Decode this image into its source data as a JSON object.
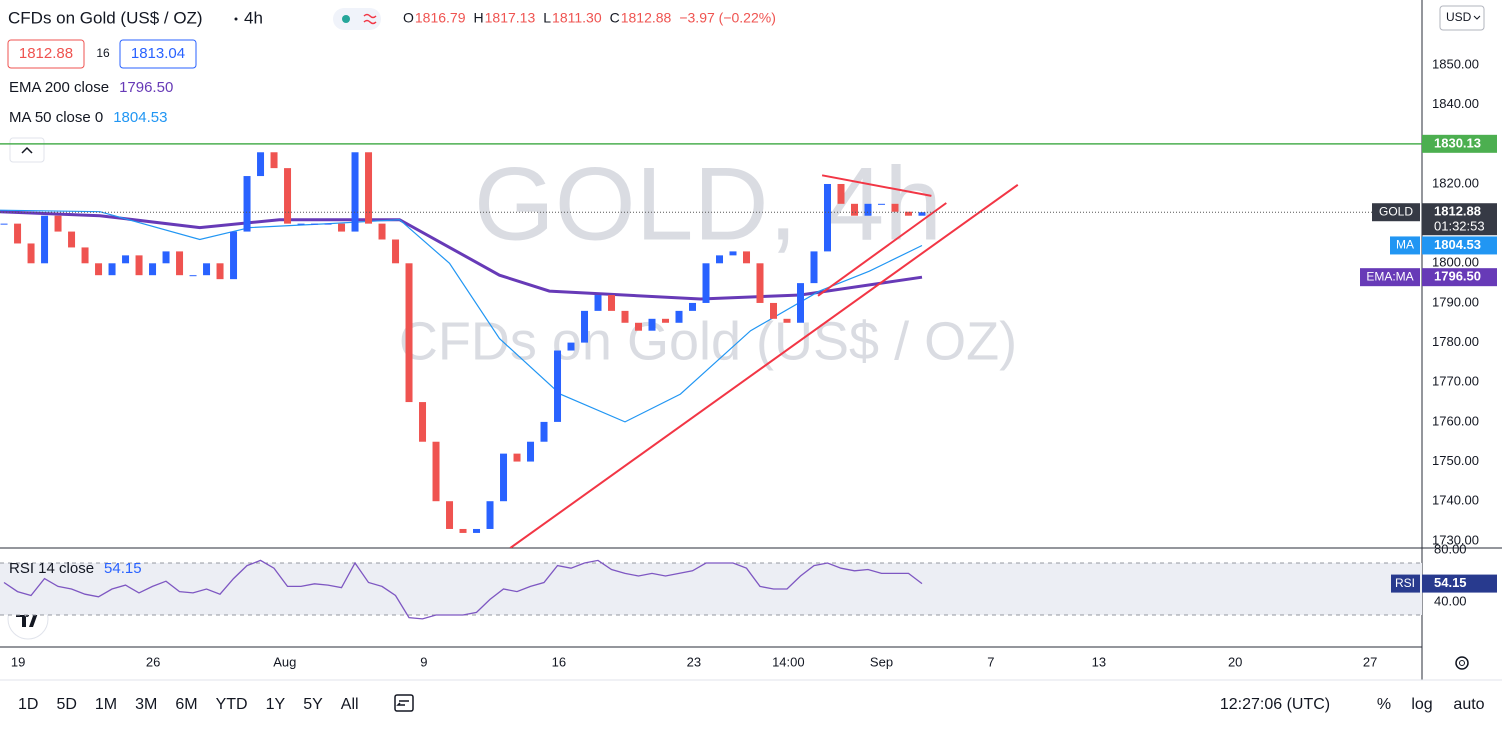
{
  "chart_data": {
    "type": "candlestick",
    "title": "CFDs on Gold (US$ / OZ)",
    "interval": "4h",
    "watermark": "GOLD, 4h",
    "symbol": "GOLD",
    "ohlc": [
      {
        "label": "O",
        "value": "1816.79"
      },
      {
        "label": "H",
        "value": "1817.13"
      },
      {
        "label": "L",
        "value": "1811.30"
      },
      {
        "label": "C",
        "value": "1812.88"
      }
    ],
    "change": "−3.97 (−0.22%)",
    "bid": "1812.88",
    "spread": "16",
    "ask": "1813.04",
    "currency": "USD",
    "countdown": "01:32:53",
    "up_color": "#2962ff",
    "down_color": "#ef5350",
    "x": [
      0,
      1,
      2,
      3,
      4,
      5,
      6,
      7,
      8,
      9,
      10,
      11,
      12,
      13,
      14,
      15,
      16,
      17,
      18,
      19,
      20,
      21,
      22,
      23,
      24,
      25,
      26,
      27,
      28,
      29,
      30,
      31,
      32,
      33,
      34,
      35,
      36,
      37,
      38,
      39,
      40,
      41,
      42,
      43,
      44,
      45,
      46,
      47,
      48,
      49,
      50,
      51,
      52,
      53,
      54,
      55,
      56,
      57,
      58,
      59,
      60,
      61,
      62,
      63,
      64,
      65,
      66,
      67,
      68
    ],
    "values": [
      1810,
      1805,
      1800,
      1812,
      1808,
      1804,
      1800,
      1797,
      1800,
      1802,
      1797,
      1800,
      1803,
      1797,
      1797,
      1800,
      1796,
      1808,
      1822,
      1828,
      1824,
      1810,
      1810,
      1810,
      1810,
      1808,
      1828,
      1810,
      1806,
      1800,
      1765,
      1755,
      1740,
      1733,
      1732,
      1733,
      1740,
      1752,
      1750,
      1755,
      1760,
      1778,
      1780,
      1788,
      1792,
      1788,
      1785,
      1783,
      1786,
      1785,
      1788,
      1790,
      1800,
      1802,
      1803,
      1800,
      1790,
      1786,
      1785,
      1795,
      1803,
      1820,
      1815,
      1812,
      1815,
      1815,
      1813,
      1812,
      1812.88
    ],
    "series": [
      {
        "name": "EMA 200 close",
        "tag": "EMA:MA",
        "last_label": "1796.50",
        "color": "#673ab7",
        "x": [
          -0.3,
          7.1,
          14.5,
          20.4,
          29.3,
          33,
          36.7,
          40.4,
          51.6,
          59,
          68
        ],
        "values": [
          1813,
          1812,
          1809,
          1811,
          1811,
          1804,
          1797,
          1793,
          1791,
          1792,
          1796.5
        ]
      },
      {
        "name": "MA 50 close 0",
        "tag": "MA",
        "last_label": "1804.53",
        "color": "#2196f3",
        "x": [
          -0.3,
          7.1,
          14.5,
          18.2,
          24.1,
          29.3,
          33,
          36.7,
          41.2,
          46,
          50.1,
          55.3,
          60.4,
          64.1,
          68
        ],
        "values": [
          1813.4,
          1813,
          1806,
          1809,
          1810,
          1811,
          1800,
          1781,
          1767,
          1760,
          1767,
          1783,
          1793,
          1798,
          1804.5
        ]
      }
    ],
    "trendlines": [
      {
        "color": "#f23645",
        "x": [
          37.5,
          75.1
        ],
        "values": [
          1728.2,
          1819.8
        ]
      },
      {
        "color": "#f23645",
        "x": [
          60.3,
          69.8
        ],
        "values": [
          1791.8,
          1815.2
        ]
      },
      {
        "color": "#f23645",
        "x": [
          60.6,
          68.7
        ],
        "values": [
          1822.2,
          1817.0
        ]
      }
    ],
    "hline": {
      "value": 1830.13,
      "color": "#4caf50"
    },
    "xlim": [
      -0.3,
      105.04
    ],
    "ylim": [
      1728.2,
      1866.4
    ],
    "yticks": [
      {
        "value": 1730,
        "label": "1730.00"
      },
      {
        "value": 1740,
        "label": "1740.00"
      },
      {
        "value": 1750,
        "label": "1750.00"
      },
      {
        "value": 1760,
        "label": "1760.00"
      },
      {
        "value": 1770,
        "label": "1770.00"
      },
      {
        "value": 1780,
        "label": "1780.00"
      },
      {
        "value": 1790,
        "label": "1790.00"
      },
      {
        "value": 1800,
        "label": "1800.00"
      },
      {
        "value": 1810,
        "label": "1810.00"
      },
      {
        "value": 1820,
        "label": "1820.00"
      },
      {
        "value": 1830,
        "label": "1830.00"
      },
      {
        "value": 1840,
        "label": "1840.00"
      },
      {
        "value": 1850,
        "label": "1850.00"
      }
    ],
    "xticks": [
      {
        "value": 1.04,
        "label": "19"
      },
      {
        "value": 11.04,
        "label": "26"
      },
      {
        "value": 20.8,
        "label": "Aug"
      },
      {
        "value": 31.1,
        "label": "9"
      },
      {
        "value": 41.1,
        "label": "16"
      },
      {
        "value": 51.1,
        "label": "23"
      },
      {
        "value": 58.1,
        "label": "14:00"
      },
      {
        "value": 65.0,
        "label": "Sep"
      },
      {
        "value": 73.1,
        "label": "7"
      },
      {
        "value": 81.1,
        "label": "13"
      },
      {
        "value": 91.2,
        "label": "20"
      },
      {
        "value": 101.2,
        "label": "27"
      }
    ],
    "grid": false,
    "rsi": {
      "type": "line",
      "name": "RSI 14 close",
      "tag": "RSI",
      "last_label": "54.15",
      "color": "#7e57c2",
      "values": [
        55,
        48,
        45,
        58,
        52,
        50,
        46,
        44,
        50,
        53,
        47,
        52,
        56,
        48,
        47,
        50,
        46,
        58,
        68,
        72,
        66,
        52,
        52,
        54,
        53,
        51,
        70,
        55,
        52,
        45,
        28,
        27,
        30,
        30,
        30,
        32,
        42,
        50,
        48,
        52,
        55,
        68,
        66,
        70,
        72,
        65,
        62,
        60,
        62,
        60,
        62,
        64,
        70,
        70,
        70,
        66,
        52,
        50,
        50,
        60,
        68,
        70,
        66,
        64,
        65,
        62,
        62,
        62,
        54.15
      ],
      "ylim": [
        5.4,
        81.5
      ],
      "yticks": [
        {
          "value": 80,
          "label": "80.00"
        },
        {
          "value": 40,
          "label": "40.00"
        }
      ],
      "bands": [
        30,
        70
      ]
    }
  },
  "toolbar": {
    "ranges": [
      "1D",
      "5D",
      "1M",
      "3M",
      "6M",
      "YTD",
      "1Y",
      "5Y",
      "All"
    ],
    "clock": "12:27:06 (UTC)",
    "options": [
      "%",
      "log",
      "auto"
    ]
  }
}
